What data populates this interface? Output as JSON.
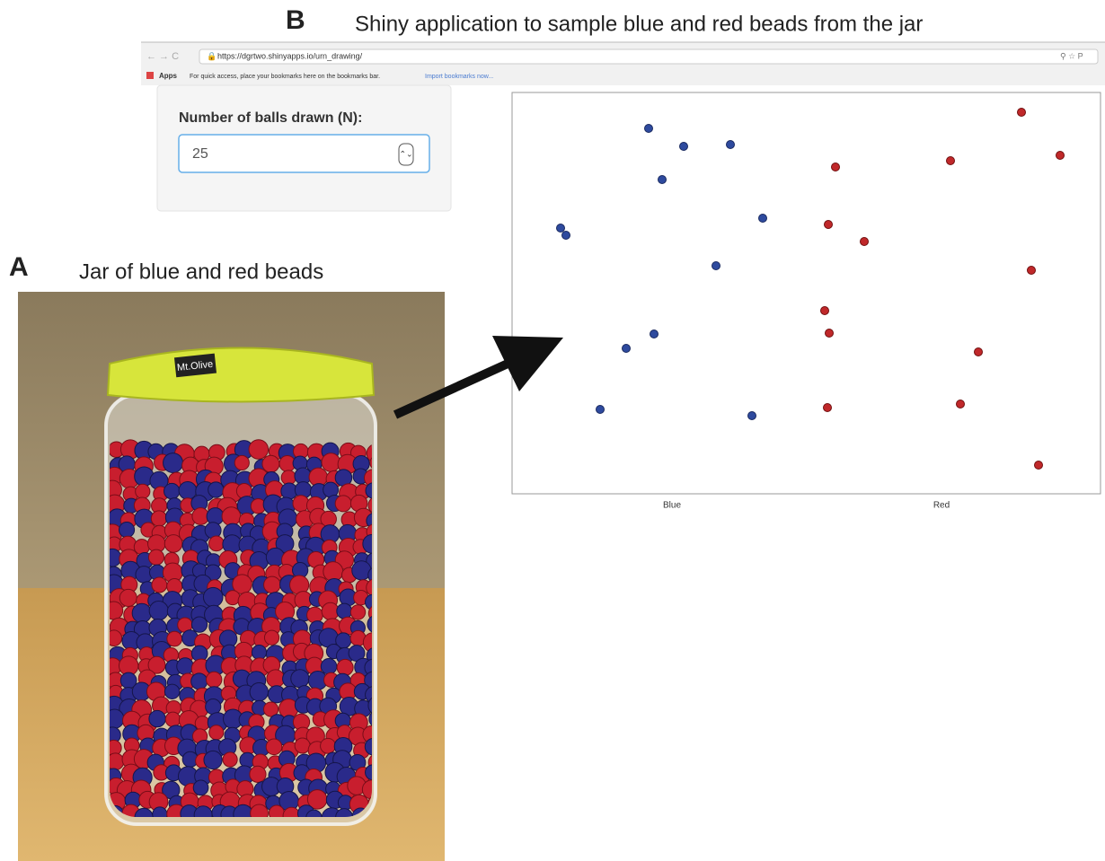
{
  "panel_b": {
    "letter": "B",
    "caption": "Shiny application to sample blue and red beads from the jar",
    "browser": {
      "url": "https://dgrtwo.shinyapps.io/urn_drawing/",
      "apps": "Apps",
      "bookmarks_hint": "For quick access, place your bookmarks here on the bookmarks bar.",
      "import_link": "Import bookmarks now..."
    },
    "input": {
      "label": "Number of balls drawn (N):",
      "value": "25"
    },
    "plot": {
      "categories": [
        "Blue",
        "Red"
      ]
    }
  },
  "panel_a": {
    "letter": "A",
    "caption": "Jar of blue and red beads",
    "lid_text": "Mt.Olive"
  }
}
